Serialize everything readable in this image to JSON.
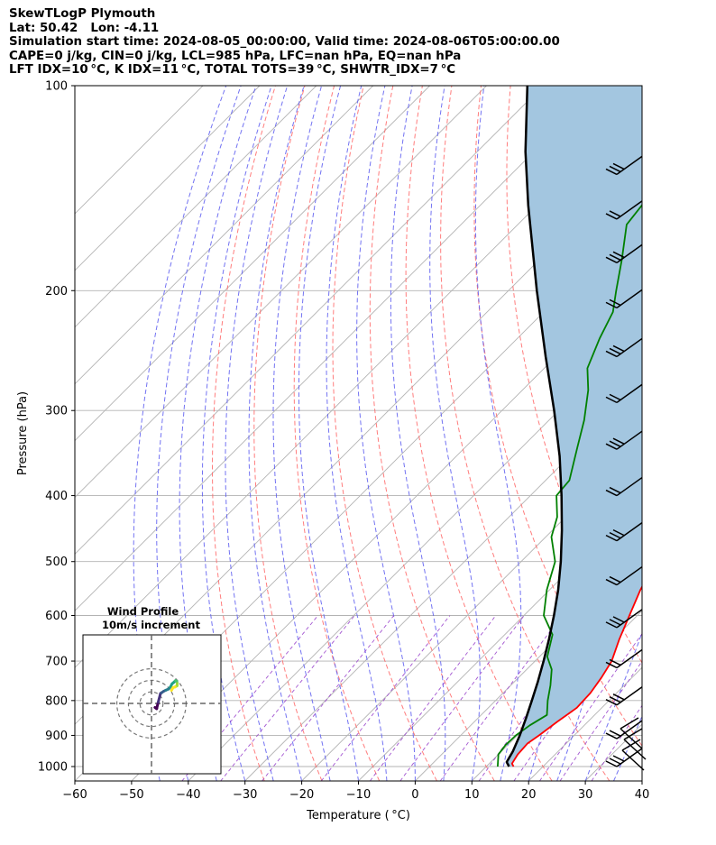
{
  "header": {
    "title": "SkewTLogP Plymouth",
    "location": "Lat: 50.42   Lon: -4.11",
    "times": "Simulation start time: 2024-08-05_00:00:00, Valid time: 2024-08-06T05:00:00.00",
    "params1": "CAPE=0 j/kg, CIN=0 j/kg, LCL=985 hPa, LFC=nan hPa, EQ=nan hPa",
    "params2": "LFT IDX=10 °C, K IDX=11 °C, TOTAL TOTS=39 °C, SHWTR_IDX=7 °C"
  },
  "colors": {
    "temperature": "#ff0000",
    "dewpoint": "#008000",
    "parcel": "#000000",
    "cape_fill": "#a3c6e0",
    "dry_adiabat": "#ff6666",
    "moist_adiabat": "#5a5af0",
    "mixing_ratio": "#9944cc",
    "isotherm": "#b3b3b3"
  },
  "chart_data": [
    {
      "type": "line",
      "name": "skew-t",
      "xlabel": "Temperature ( °C)",
      "ylabel": "Pressure (hPa)",
      "xlim": [
        -60,
        40
      ],
      "ylim": [
        1050,
        100
      ],
      "y_scale": "log",
      "x_ticks": [
        "−60",
        "−50",
        "−40",
        "−30",
        "−20",
        "−10",
        "0",
        "10",
        "20",
        "30",
        "40"
      ],
      "y_ticks": [
        "100",
        "200",
        "300",
        "400",
        "500",
        "600",
        "700",
        "800",
        "900",
        "1000"
      ],
      "grid": true,
      "series": [
        {
          "key": "temperature",
          "pressure": [
            1000,
            990,
            960,
            925,
            900,
            860,
            820,
            780,
            740,
            700,
            650,
            600,
            550,
            500,
            450,
            400,
            350,
            300,
            280,
            260,
            230,
            200,
            180,
            160,
            140,
            120,
            100
          ],
          "values": [
            14.8,
            14.0,
            13.4,
            13.2,
            13.8,
            14.6,
            15.6,
            15.4,
            14.6,
            13.5,
            11.0,
            8.6,
            6.0,
            3.8,
            0.8,
            -3.0,
            -7.7,
            -14.0,
            -17.2,
            -22.4,
            -28.5,
            -39.3,
            -41.0,
            -42.0,
            -43.0,
            -46.5,
            -50.0
          ]
        },
        {
          "key": "dewpoint",
          "pressure": [
            1000,
            960,
            930,
            900,
            870,
            840,
            800,
            760,
            720,
            690,
            640,
            600,
            550,
            500,
            460,
            430,
            400,
            380,
            340,
            310,
            280,
            260,
            235,
            215,
            200,
            180,
            160,
            150,
            140,
            120,
            100
          ],
          "values": [
            12.0,
            10.0,
            9.6,
            9.7,
            10.4,
            11.6,
            9.2,
            7.0,
            4.4,
            1.4,
            -1.6,
            -6.5,
            -10.5,
            -14.0,
            -19.0,
            -21.5,
            -25.4,
            -25.8,
            -30.2,
            -33.8,
            -38.4,
            -42.4,
            -45.5,
            -47.8,
            -51.0,
            -55.5,
            -60.8,
            -61.5,
            -62.5,
            -63.0,
            -63.8
          ]
        },
        {
          "key": "parcel",
          "pressure": [
            1000,
            985,
            950,
            900,
            850,
            800,
            750,
            700,
            650,
            600,
            550,
            500,
            450,
            400,
            350,
            300,
            250,
            200,
            150,
            125,
            100
          ],
          "values": [
            14.0,
            12.8,
            12.0,
            10.4,
            8.5,
            6.4,
            4.1,
            1.5,
            -1.4,
            -4.7,
            -8.5,
            -13.0,
            -18.3,
            -24.5,
            -31.8,
            -40.8,
            -51.8,
            -65.0,
            -81.5,
            -91.5,
            -102.8
          ]
        }
      ]
    },
    {
      "type": "scatter",
      "name": "hodograph",
      "title": "Wind Profile",
      "subtitle": "10m/s increment",
      "rings_ms": [
        10,
        20,
        30
      ],
      "u": [
        3.0,
        4.5,
        4.6,
        5.8,
        7.8,
        8.5,
        10.5,
        12.4,
        14.8,
        16.4,
        17.8,
        19.5,
        20.8,
        21.9,
        22.3,
        22.1,
        20.5,
        18.7,
        17.3
      ],
      "v": [
        -3.5,
        -4.6,
        -4.0,
        1.0,
        8.6,
        9.1,
        10.5,
        11.4,
        12.5,
        14.2,
        17.0,
        18.4,
        19.8,
        19.2,
        17.3,
        15.3,
        14.3,
        13.7,
        11.3
      ]
    }
  ]
}
